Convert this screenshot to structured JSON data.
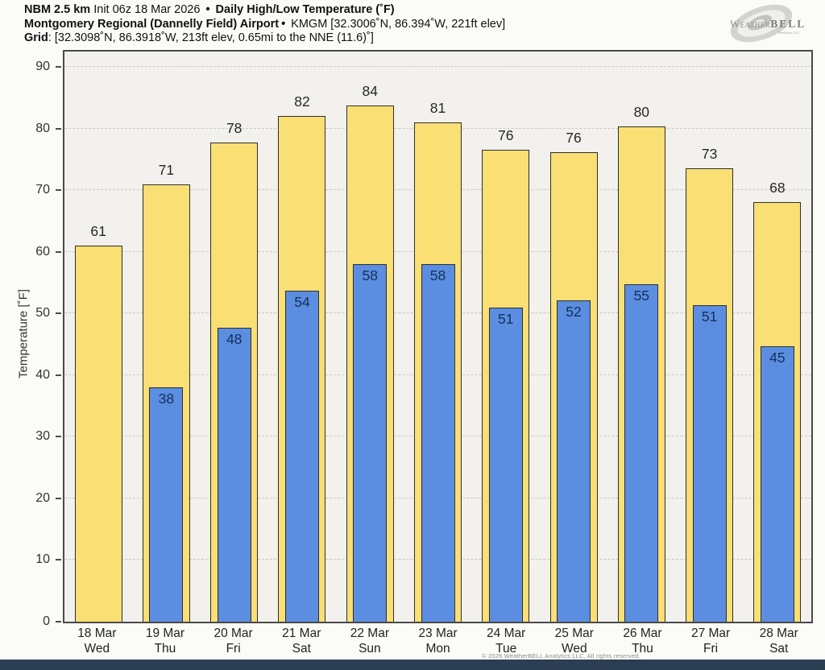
{
  "header": {
    "model": "NBM 2.5 km",
    "init": " Init 06z 18 Mar 2026 ",
    "bullet": "•",
    "product": " Daily High/Low Temperature (˚F)",
    "station_name": "Montgomery Regional (Dannelly Field) Airport",
    "station_meta": " KMGM [32.3006˚N, 86.394˚W, 221ft elev]",
    "grid_label": "Grid",
    "grid_meta": ": [32.3098˚N, 86.3918˚W, 213ft elev, 0.65mi to the NNE (11.6)˚]"
  },
  "logo": {
    "brand_initial": "W",
    "brand_weather": "EATHER",
    "brand_bell": "BELL",
    "brand_sub": "Analytics LLC"
  },
  "chart_data": {
    "type": "bar",
    "title": "Daily High/Low Temperature (˚F)",
    "xlabel": "",
    "ylabel": "Temperature [˚F]",
    "ylim": [
      0,
      92.5
    ],
    "yticks": [
      0,
      10,
      20,
      30,
      40,
      50,
      60,
      70,
      80,
      90
    ],
    "grid": "horizontal-dashed",
    "legend": "none",
    "categories": [
      {
        "date": "18 Mar",
        "day": "Wed"
      },
      {
        "date": "19 Mar",
        "day": "Thu"
      },
      {
        "date": "20 Mar",
        "day": "Fri"
      },
      {
        "date": "21 Mar",
        "day": "Sat"
      },
      {
        "date": "22 Mar",
        "day": "Sun"
      },
      {
        "date": "23 Mar",
        "day": "Mon"
      },
      {
        "date": "24 Mar",
        "day": "Tue"
      },
      {
        "date": "25 Mar",
        "day": "Wed"
      },
      {
        "date": "26 Mar",
        "day": "Thu"
      },
      {
        "date": "27 Mar",
        "day": "Fri"
      },
      {
        "date": "28 Mar",
        "day": "Sat"
      }
    ],
    "series": [
      {
        "name": "Daily High",
        "color": "#f9df74",
        "labels": [
          61,
          71,
          78,
          82,
          84,
          81,
          76,
          76,
          80,
          73,
          68
        ],
        "values": [
          61.0,
          70.9,
          77.8,
          82.0,
          83.8,
          81.0,
          76.5,
          76.2,
          80.4,
          73.5,
          68.1
        ]
      },
      {
        "name": "Daily Low",
        "color": "#5b8ee0",
        "labels": [
          null,
          38,
          48,
          54,
          58,
          58,
          51,
          52,
          55,
          51,
          45
        ],
        "values": [
          null,
          38.0,
          47.7,
          53.7,
          58.0,
          58.0,
          51.0,
          52.1,
          54.8,
          51.3,
          44.7
        ]
      }
    ]
  },
  "footer": {
    "copyright": "© 2026 WeatherBELL Analytics LLC. All rights reserved.",
    "bar_color": "#2b3e52"
  }
}
